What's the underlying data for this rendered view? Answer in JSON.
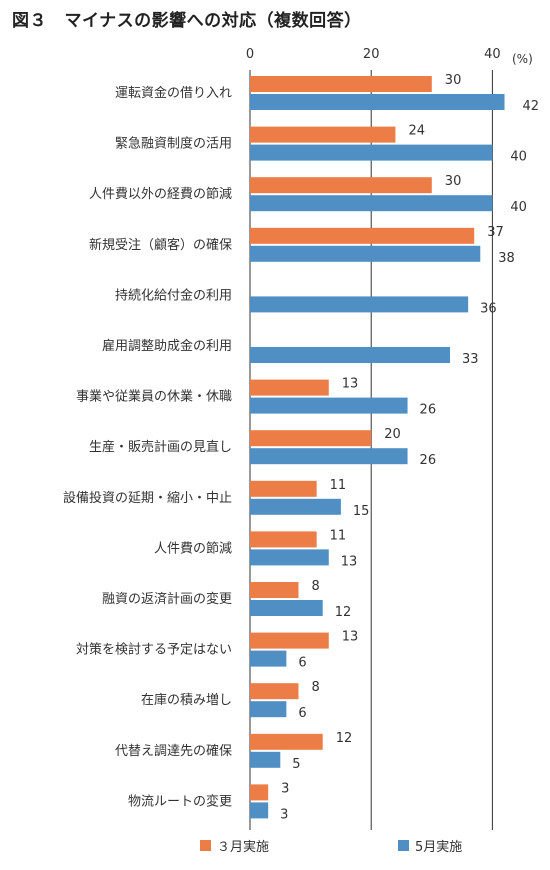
{
  "figure": {
    "title": "図３　マイナスの影響への対応（複数回答）"
  },
  "colors": {
    "march": "#ED7D46",
    "may": "#4F8FC4",
    "grid": "#333333"
  },
  "chart_data": {
    "type": "bar",
    "orientation": "horizontal",
    "title": "図３　マイナスの影響への対応（複数回答）",
    "xlabel": "(%)",
    "ylabel": "",
    "xlim": [
      0,
      40
    ],
    "x_ticks": [
      0,
      20,
      40
    ],
    "x_tick_labels": [
      "0",
      "20",
      "40"
    ],
    "grid": true,
    "legend_position": "bottom",
    "categories": [
      "運転資金の借り入れ",
      "緊急融資制度の活用",
      "人件費以外の経費の節減",
      "新規受注（顧客）の確保",
      "持続化給付金の利用",
      "雇用調整助成金の利用",
      "事業や従業員の休業・休職",
      "生産・販売計画の見直し",
      "設備投資の延期・縮小・中止",
      "人件費の節減",
      "融資の返済計画の変更",
      "対策を検討する予定はない",
      "在庫の積み増し",
      "代替え調達先の確保",
      "物流ルートの変更"
    ],
    "series": [
      {
        "name": "３月実施",
        "values": [
          30,
          24,
          30,
          37,
          null,
          null,
          13,
          20,
          11,
          11,
          8,
          13,
          8,
          12,
          3
        ]
      },
      {
        "name": "5月実施",
        "values": [
          42,
          40,
          40,
          38,
          36,
          33,
          26,
          26,
          15,
          13,
          12,
          6,
          6,
          5,
          3
        ]
      }
    ]
  }
}
